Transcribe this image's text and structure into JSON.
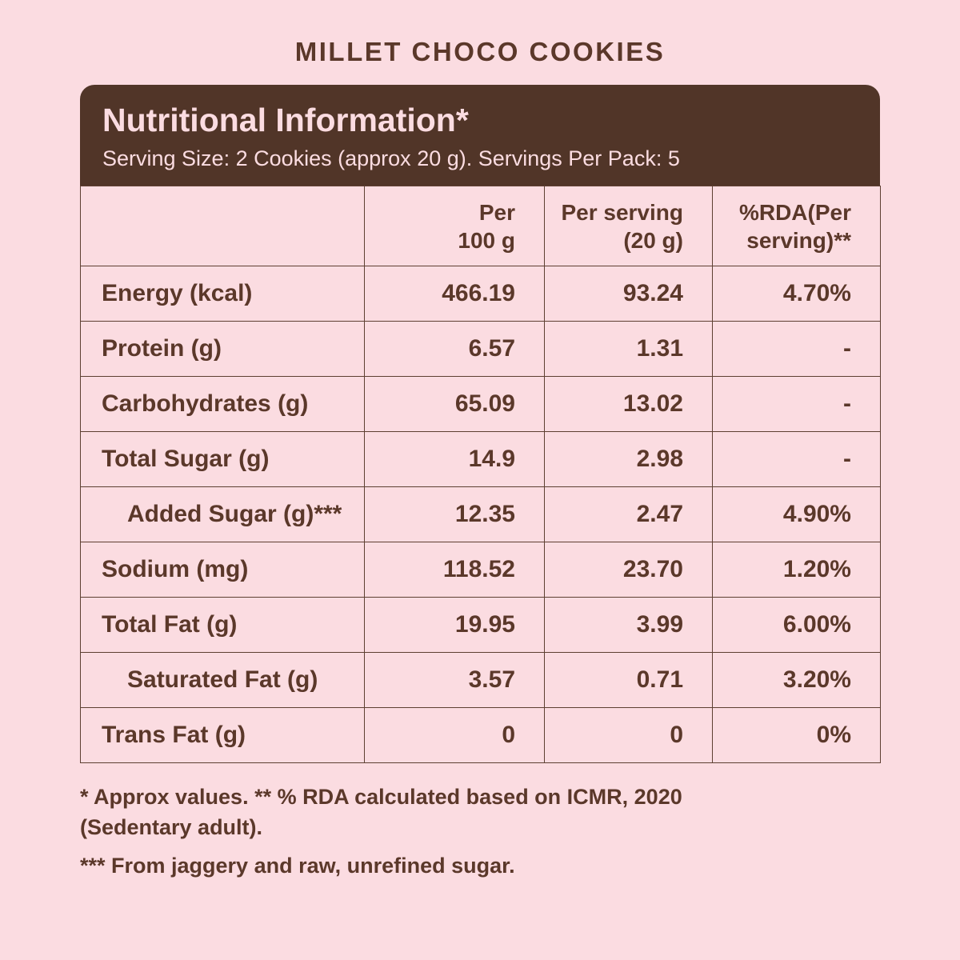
{
  "colors": {
    "background": "#fbdce1",
    "panel_bg": "#513528",
    "text": "#5b382a",
    "border": "#5e4032"
  },
  "page_title": "MILLET CHOCO COOKIES",
  "panel": {
    "title": "Nutritional Information*",
    "serving_line": "Serving Size: 2 Cookies (approx 20 g). Servings Per Pack: 5"
  },
  "table": {
    "headers": {
      "col1": "",
      "col2": "Per\n100 g",
      "col3": "Per serving\n(20 g)",
      "col4": "%RDA(Per\nserving)**"
    },
    "rows": [
      {
        "label": "Energy (kcal)",
        "per100": "466.19",
        "serving": "93.24",
        "rda": "4.70%"
      },
      {
        "label": "Protein (g)",
        "per100": "6.57",
        "serving": "1.31",
        "rda": "-"
      },
      {
        "label": "Carbohydrates (g)",
        "per100": "65.09",
        "serving": "13.02",
        "rda": "-"
      },
      {
        "label": "Total Sugar (g)",
        "per100": "14.9",
        "serving": "2.98",
        "rda": "-"
      },
      {
        "label": "Added Sugar (g)***",
        "per100": "12.35",
        "serving": "2.47",
        "rda": "4.90%"
      },
      {
        "label": "Sodium (mg)",
        "per100": "118.52",
        "serving": "23.70",
        "rda": "1.20%"
      },
      {
        "label": "Total Fat (g)",
        "per100": "19.95",
        "serving": "3.99",
        "rda": "6.00%"
      },
      {
        "label": "Saturated Fat (g)",
        "per100": "3.57",
        "serving": "0.71",
        "rda": "3.20%"
      },
      {
        "label": "Trans Fat (g)",
        "per100": "0",
        "serving": "0",
        "rda": "0%"
      }
    ]
  },
  "footnotes": {
    "line1": "* Approx values. ** % RDA calculated based on ICMR, 2020\n(Sedentary adult).",
    "line2": "*** From jaggery and raw, unrefined sugar."
  }
}
